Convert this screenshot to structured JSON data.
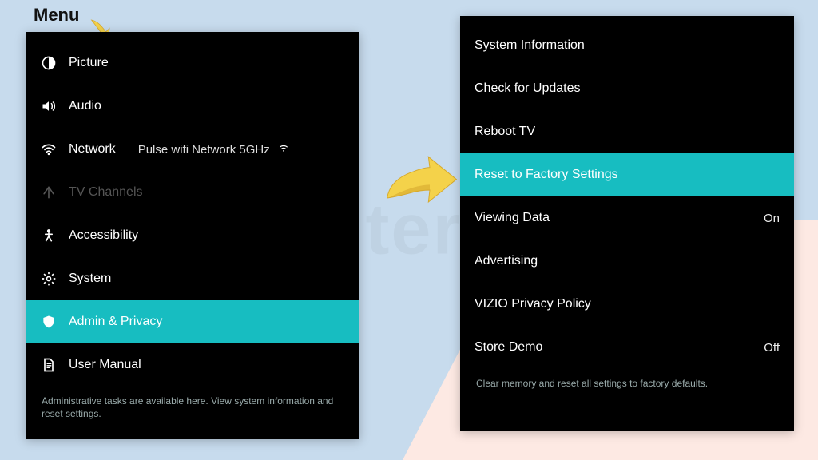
{
  "colors": {
    "bg_blue": "#c7dbed",
    "bg_pink": "#fde9e3",
    "panel_bg": "#000000",
    "highlight": "#17bdc1",
    "arrow_fill": "#f4d24a",
    "arrow_shadow": "#d6a92e",
    "text_dark": "#151515"
  },
  "watermark": "routermo",
  "title": "Menu",
  "left_panel": {
    "items": [
      {
        "icon": "contrast",
        "label": "Picture"
      },
      {
        "icon": "speaker",
        "label": "Audio"
      },
      {
        "icon": "wifi",
        "label": "Network",
        "inline_value": "Pulse wifi Network 5GHz",
        "trailing_icon": "wifi-mini"
      },
      {
        "icon": "antenna",
        "label": "TV Channels",
        "disabled": true
      },
      {
        "icon": "person",
        "label": "Accessibility"
      },
      {
        "icon": "gear",
        "label": "System"
      },
      {
        "icon": "shield",
        "label": "Admin & Privacy",
        "highlighted": true
      },
      {
        "icon": "document",
        "label": "User Manual"
      }
    ],
    "hint": "Administrative tasks are available here. View system information and reset settings."
  },
  "right_panel": {
    "items": [
      {
        "label": "System Information"
      },
      {
        "label": "Check for Updates"
      },
      {
        "label": "Reboot TV"
      },
      {
        "label": "Reset to Factory Settings",
        "highlighted": true
      },
      {
        "label": "Viewing Data",
        "value": "On"
      },
      {
        "label": "Advertising"
      },
      {
        "label": "VIZIO Privacy Policy"
      },
      {
        "label": "Store Demo",
        "value": "Off"
      }
    ],
    "hint": "Clear memory and reset all settings to factory defaults."
  }
}
